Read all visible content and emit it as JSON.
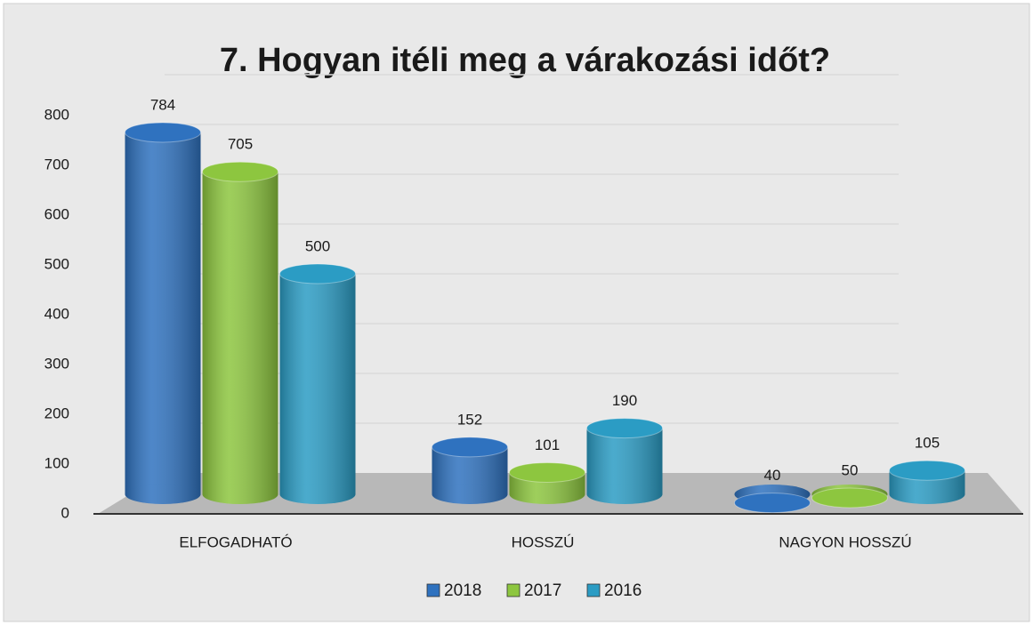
{
  "chart_data": {
    "type": "bar",
    "title": "7. Hogyan itéli meg a várakozási időt?",
    "categories": [
      "ELFOGADHATÓ",
      "HOSSZÚ",
      "NAGYON HOSSZÚ"
    ],
    "series": [
      {
        "name": "2018",
        "color": "#2f72bf",
        "values": [
          784,
          152,
          40
        ]
      },
      {
        "name": "2017",
        "color": "#8dc63f",
        "values": [
          705,
          101,
          50
        ]
      },
      {
        "name": "2016",
        "color": "#2b9cc4",
        "values": [
          500,
          190,
          105
        ]
      }
    ],
    "ylim": [
      0,
      800
    ],
    "yticks": [
      0,
      100,
      200,
      300,
      400,
      500,
      600,
      700,
      800
    ],
    "grid": true,
    "legend": "bottom"
  }
}
